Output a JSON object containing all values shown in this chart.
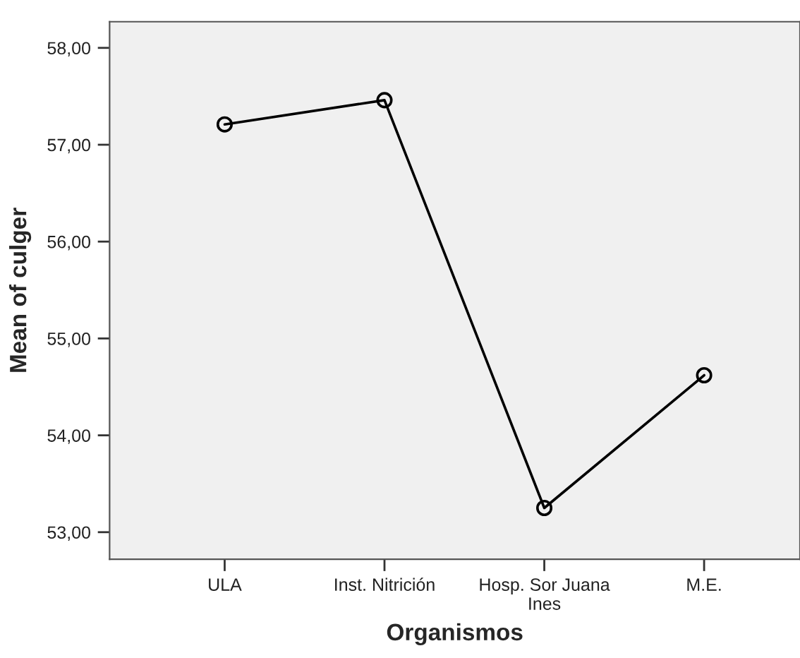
{
  "chart_data": {
    "type": "line",
    "xlabel": "Organismos",
    "ylabel": "Mean of culger",
    "categories": [
      "ULA",
      "Inst. Nitrición",
      "Hosp. Sor Juana\nInes",
      "M.E."
    ],
    "series": [
      {
        "color": "#000000",
        "values": [
          57.21,
          57.46,
          53.25,
          54.62
        ]
      }
    ],
    "ylim": [
      52.72,
      58.27
    ],
    "yticks": [
      {
        "value": 53,
        "label": "53,00"
      },
      {
        "value": 54,
        "label": "54,00"
      },
      {
        "value": 55,
        "label": "55,00"
      },
      {
        "value": 56,
        "label": "56,00"
      },
      {
        "value": 57,
        "label": "57,00"
      },
      {
        "value": 58,
        "label": "58,00"
      }
    ],
    "marker": "circle",
    "line_style": "solid",
    "grid": false,
    "legend": false
  }
}
